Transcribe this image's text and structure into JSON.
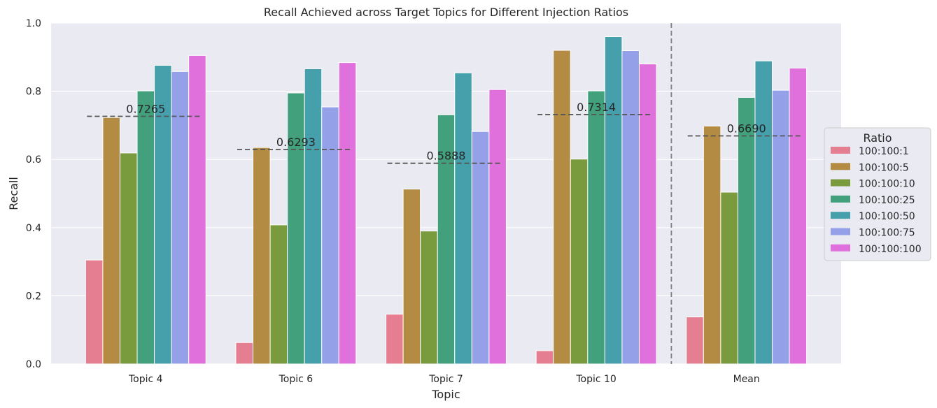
{
  "chart_data": {
    "type": "bar",
    "title": "Recall Achieved across Target Topics for Different Injection Ratios",
    "xlabel": "Topic",
    "ylabel": "Recall",
    "ylim": [
      0,
      1.0
    ],
    "yticks": [
      "0.0",
      "0.2",
      "0.4",
      "0.6",
      "0.8",
      "1.0"
    ],
    "grid": true,
    "categories": [
      "Topic 4",
      "Topic 6",
      "Topic 7",
      "Topic 10",
      "Mean"
    ],
    "legend": {
      "title": "Ratio",
      "placement": "right"
    },
    "series": [
      {
        "name": "100:100:1",
        "color": "#e67e91",
        "values": [
          0.305,
          0.063,
          0.146,
          0.039,
          0.138
        ]
      },
      {
        "name": "100:100:5",
        "color": "#b38b42",
        "values": [
          0.723,
          0.635,
          0.513,
          0.92,
          0.698
        ]
      },
      {
        "name": "100:100:10",
        "color": "#7a9a3e",
        "values": [
          0.619,
          0.408,
          0.39,
          0.601,
          0.504
        ]
      },
      {
        "name": "100:100:25",
        "color": "#42a07d",
        "values": [
          0.801,
          0.795,
          0.731,
          0.801,
          0.782
        ]
      },
      {
        "name": "100:100:50",
        "color": "#45a0ac",
        "values": [
          0.876,
          0.866,
          0.854,
          0.96,
          0.889
        ]
      },
      {
        "name": "100:100:75",
        "color": "#94a1e8",
        "values": [
          0.858,
          0.754,
          0.682,
          0.919,
          0.803
        ]
      },
      {
        "name": "100:100:100",
        "color": "#e070dc",
        "values": [
          0.905,
          0.884,
          0.805,
          0.88,
          0.868
        ]
      }
    ],
    "mean_lines": [
      {
        "category": "Topic 4",
        "value": 0.7265,
        "label": "0.7265"
      },
      {
        "category": "Topic 6",
        "value": 0.6293,
        "label": "0.6293"
      },
      {
        "category": "Topic 7",
        "value": 0.5888,
        "label": "0.5888"
      },
      {
        "category": "Topic 10",
        "value": 0.7314,
        "label": "0.7314"
      },
      {
        "category": "Mean",
        "value": 0.669,
        "label": "0.6690"
      }
    ],
    "separator_after_category": "Topic 10",
    "colors": {
      "plot_background": "#eaeaf2",
      "grid": "#ffffff",
      "mean_line": "#555555",
      "separator": "#808080"
    }
  }
}
